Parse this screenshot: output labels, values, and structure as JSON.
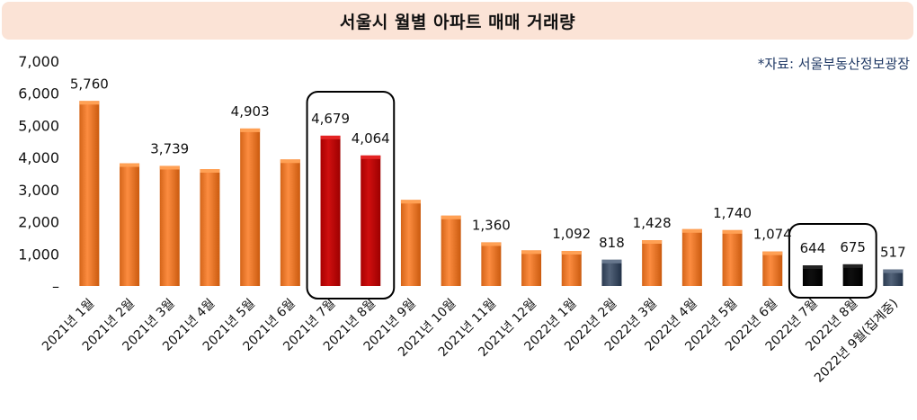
{
  "title": "서울시 월별 아파트 매매 거래량",
  "source": "*자료: 서울부동산정보광장",
  "colors": {
    "orange": "#ed7d31",
    "red": "#c00000",
    "slate": "#44546a",
    "black": "#000000",
    "title_bg": "#fbe3d6",
    "source_text": "#1f3864"
  },
  "chart_data": {
    "type": "bar",
    "title": "서울시 월별 아파트 매매 거래량",
    "xlabel": "",
    "ylabel": "",
    "ylim": [
      0,
      7000
    ],
    "yticks": [
      {
        "value": 0,
        "label": "–"
      },
      {
        "value": 1000,
        "label": "1,000"
      },
      {
        "value": 2000,
        "label": "2,000"
      },
      {
        "value": 3000,
        "label": "3,000"
      },
      {
        "value": 4000,
        "label": "4,000"
      },
      {
        "value": 5000,
        "label": "5,000"
      },
      {
        "value": 6000,
        "label": "6,000"
      },
      {
        "value": 7000,
        "label": "7,000"
      }
    ],
    "grid": false,
    "categories": [
      "2021년 1월",
      "2021년 2월",
      "2021년 3월",
      "2021년 4월",
      "2021년 5월",
      "2021년 6월",
      "2021년 7월",
      "2021년 8월",
      "2021년 9월",
      "2021년 10월",
      "2021년 11월",
      "2021년 12월",
      "2022년 1월",
      "2022년 2월",
      "2022년 3월",
      "2022년 4월",
      "2022년 5월",
      "2022년 6월",
      "2022년 7월",
      "2022년 8월",
      "2022년 9월(집계중)"
    ],
    "values": [
      5760,
      3820,
      3739,
      3640,
      4903,
      3940,
      4679,
      4064,
      2680,
      2190,
      1360,
      1110,
      1092,
      818,
      1428,
      1770,
      1740,
      1074,
      644,
      675,
      517
    ],
    "data_labels": [
      "5,760",
      "",
      "3,739",
      "",
      "4,903",
      "",
      "4,679",
      "4,064",
      "",
      "",
      "1,360",
      "",
      "1,092",
      "818",
      "1,428",
      "",
      "1,740",
      "1,074",
      "644",
      "675",
      "517"
    ],
    "bar_colors": [
      "orange",
      "orange",
      "orange",
      "orange",
      "orange",
      "orange",
      "red",
      "red",
      "orange",
      "orange",
      "orange",
      "orange",
      "orange",
      "slate",
      "orange",
      "orange",
      "orange",
      "orange",
      "black",
      "black",
      "slate"
    ],
    "highlight_groups": [
      [
        6,
        7
      ],
      [
        18,
        19
      ]
    ]
  }
}
